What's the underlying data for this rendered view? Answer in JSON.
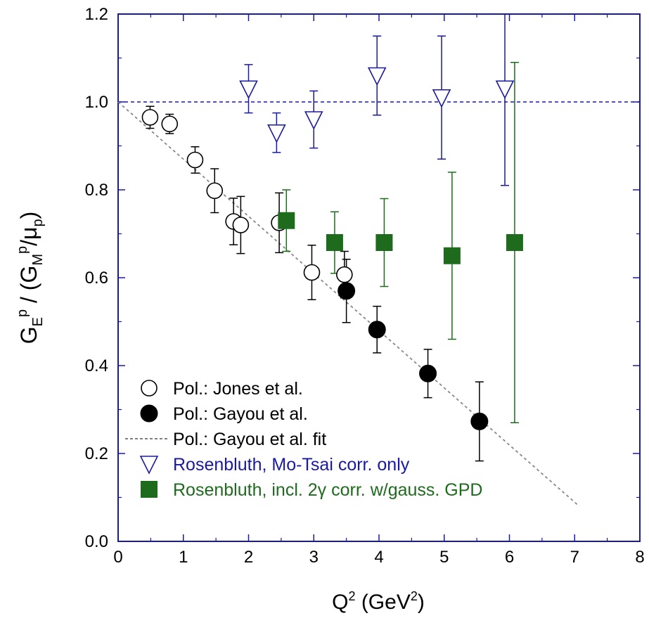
{
  "chart_data": {
    "type": "scatter",
    "xlabel": "Q² (GeV²)",
    "ylabel": "G_E^p / (G_M^p/μ_p)",
    "xlim": [
      0,
      8
    ],
    "ylim": [
      0.0,
      1.2
    ],
    "x_ticks": [
      "0",
      "1",
      "2",
      "3",
      "4",
      "5",
      "6",
      "7",
      "8"
    ],
    "y_ticks": [
      "0.0",
      "0.2",
      "0.4",
      "0.6",
      "0.8",
      "1.0",
      "1.2"
    ],
    "grid": false,
    "legend_position": "bottom-left",
    "reference_line": {
      "y": 1.0,
      "style": "dashed",
      "color": "#1a1aa0"
    },
    "series": [
      {
        "name": "Pol.: Jones et al.",
        "marker": "open-circle",
        "color": "#000000",
        "points": [
          {
            "x": 0.49,
            "y": 0.965,
            "err": 0.025
          },
          {
            "x": 0.79,
            "y": 0.95,
            "err": 0.022
          },
          {
            "x": 1.18,
            "y": 0.868,
            "err": 0.03
          },
          {
            "x": 1.48,
            "y": 0.798,
            "err": 0.05
          },
          {
            "x": 1.77,
            "y": 0.728,
            "err": 0.053
          },
          {
            "x": 1.88,
            "y": 0.72,
            "err": 0.065
          },
          {
            "x": 2.47,
            "y": 0.725,
            "err": 0.068
          },
          {
            "x": 2.97,
            "y": 0.612,
            "err": 0.062
          },
          {
            "x": 3.47,
            "y": 0.607,
            "err": 0.053
          }
        ]
      },
      {
        "name": "Pol.: Gayou et al.",
        "marker": "filled-circle",
        "color": "#000000",
        "points": [
          {
            "x": 3.5,
            "y": 0.57,
            "err": 0.072
          },
          {
            "x": 3.97,
            "y": 0.482,
            "err": 0.053
          },
          {
            "x": 4.75,
            "y": 0.382,
            "err": 0.055
          },
          {
            "x": 5.54,
            "y": 0.273,
            "err": 0.09
          }
        ]
      },
      {
        "name": "Pol.: Gayou et al. fit",
        "marker": "dashed-line",
        "color": "#888888",
        "line": [
          {
            "x": 0.0,
            "y": 1.0
          },
          {
            "x": 7.07,
            "y": 0.08
          }
        ]
      },
      {
        "name": "Rosenbluth, Mo-Tsai corr. only",
        "marker": "open-triangle-down",
        "color": "#1a1aa0",
        "points": [
          {
            "x": 2.0,
            "y": 1.03,
            "err": 0.055
          },
          {
            "x": 2.43,
            "y": 0.93,
            "err": 0.045
          },
          {
            "x": 3.0,
            "y": 0.96,
            "err": 0.065
          },
          {
            "x": 3.97,
            "y": 1.06,
            "err": 0.09
          },
          {
            "x": 4.96,
            "y": 1.01,
            "err": 0.14
          },
          {
            "x": 5.93,
            "y": 1.03,
            "err": 0.22
          }
        ]
      },
      {
        "name": "Rosenbluth, incl. 2γ corr. w/gauss. GPD",
        "marker": "filled-square",
        "color": "#1e6b1e",
        "points": [
          {
            "x": 2.58,
            "y": 0.73,
            "err": 0.07
          },
          {
            "x": 3.32,
            "y": 0.68,
            "err": 0.07
          },
          {
            "x": 4.08,
            "y": 0.68,
            "err": 0.1
          },
          {
            "x": 5.12,
            "y": 0.65,
            "err": 0.19
          },
          {
            "x": 6.08,
            "y": 0.68,
            "err": 0.41
          }
        ]
      }
    ]
  }
}
